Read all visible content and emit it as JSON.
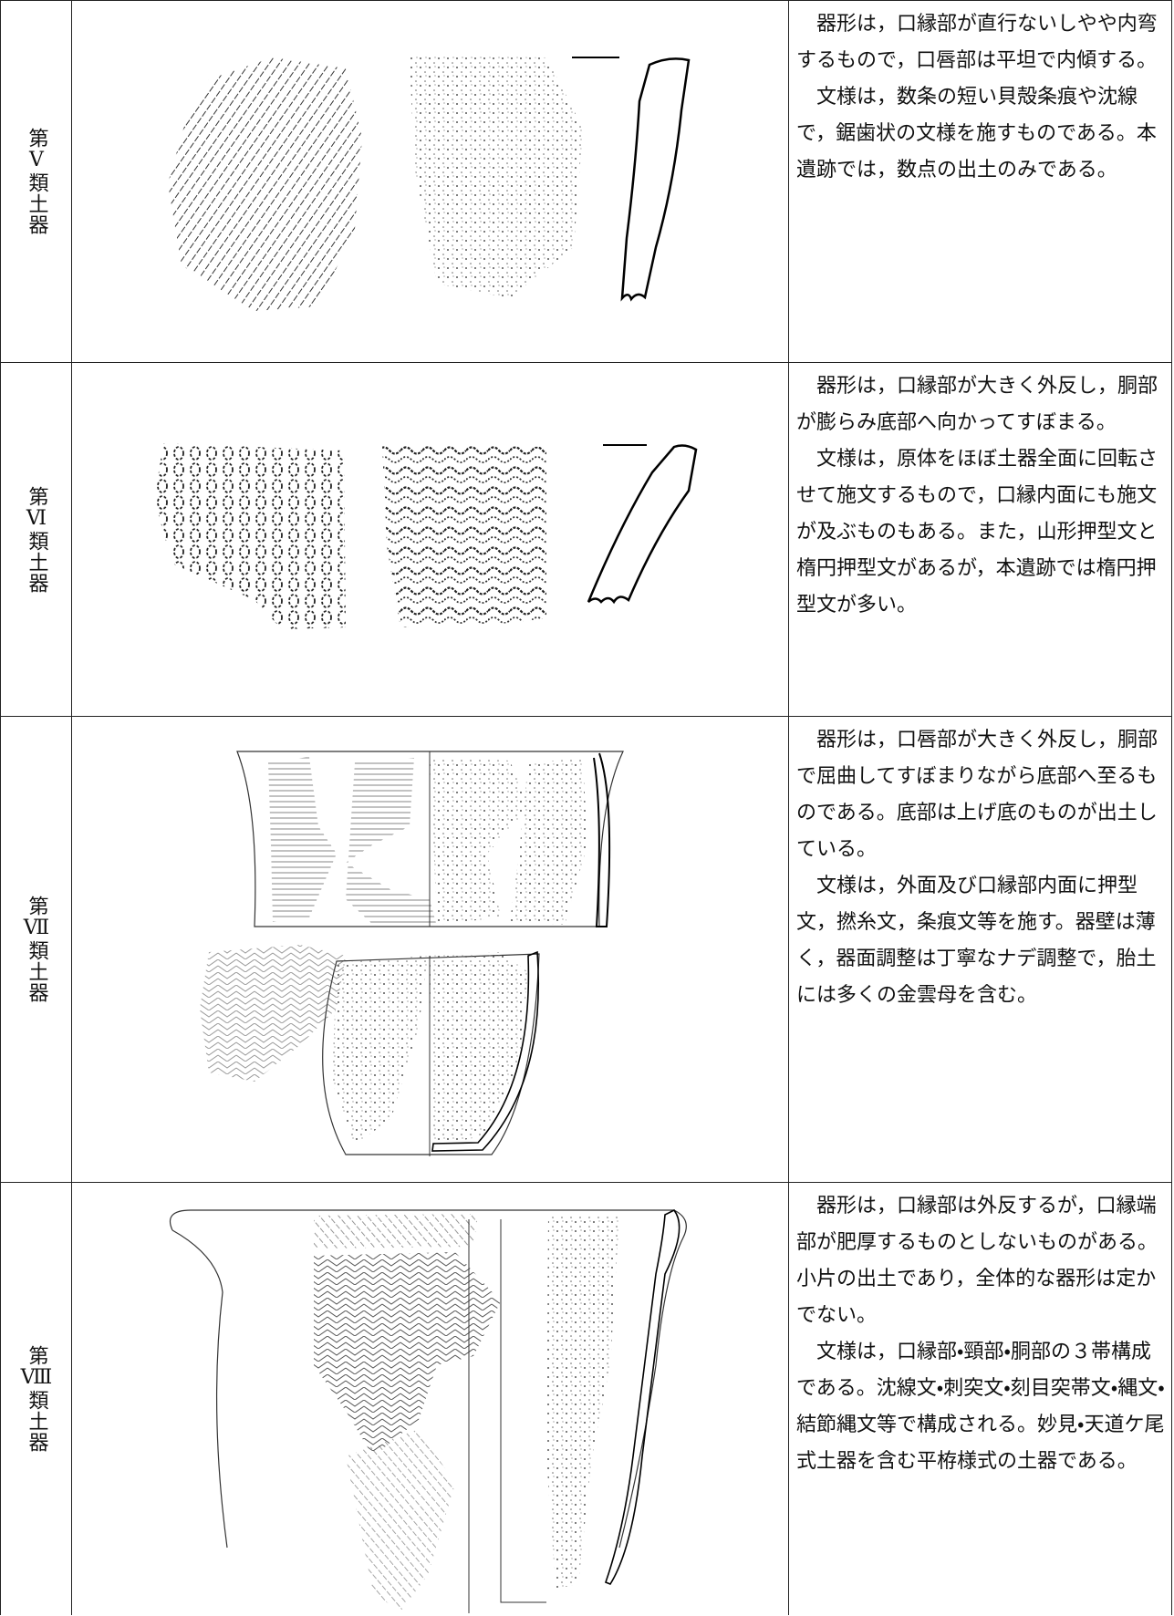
{
  "table": {
    "rows": [
      {
        "label": "第Ⅴ類土器",
        "paragraphs": [
          "器形は，口縁部が直行ないしやや内弯するもので，口唇部は平坦で内傾する。",
          "文様は，数条の短い貝殻条痕や沈線で，鋸歯状の文様を施すものである。本遺跡では，数点の出土のみである。"
        ]
      },
      {
        "label": "第Ⅵ類土器",
        "paragraphs": [
          "器形は，口縁部が大きく外反し，胴部が膨らみ底部へ向かってすぼまる。",
          "文様は，原体をほぼ土器全面に回転させて施文するもので，口縁内面にも施文が及ぶものもある。また，山形押型文と楕円押型文があるが，本遺跡では楕円押型文が多い。"
        ]
      },
      {
        "label": "第Ⅶ類土器",
        "paragraphs": [
          "器形は，口唇部が大きく外反し，胴部で屈曲してすぼまりながら底部へ至るものである。底部は上げ底のものが出土している。",
          "文様は，外面及び口縁部内面に押型文，撚糸文，条痕文等を施す。器壁は薄く，器面調整は丁寧なナデ調整で，胎土には多くの金雲母を含む。"
        ]
      },
      {
        "label": "第Ⅷ類土器",
        "paragraphs": [
          "器形は，口縁部は外反するが，口縁端部が肥厚するものとしないものがある。小片の出土であり，全体的な器形は定かでない。",
          "文様は，口縁部・頸部・胴部の３帯構成である。沈線文・刺突文・刻目突帯文・縄文・結節縄文等で構成される。妙見・天道ケ尾式土器を含む平栫様式の土器である。"
        ]
      }
    ]
  }
}
